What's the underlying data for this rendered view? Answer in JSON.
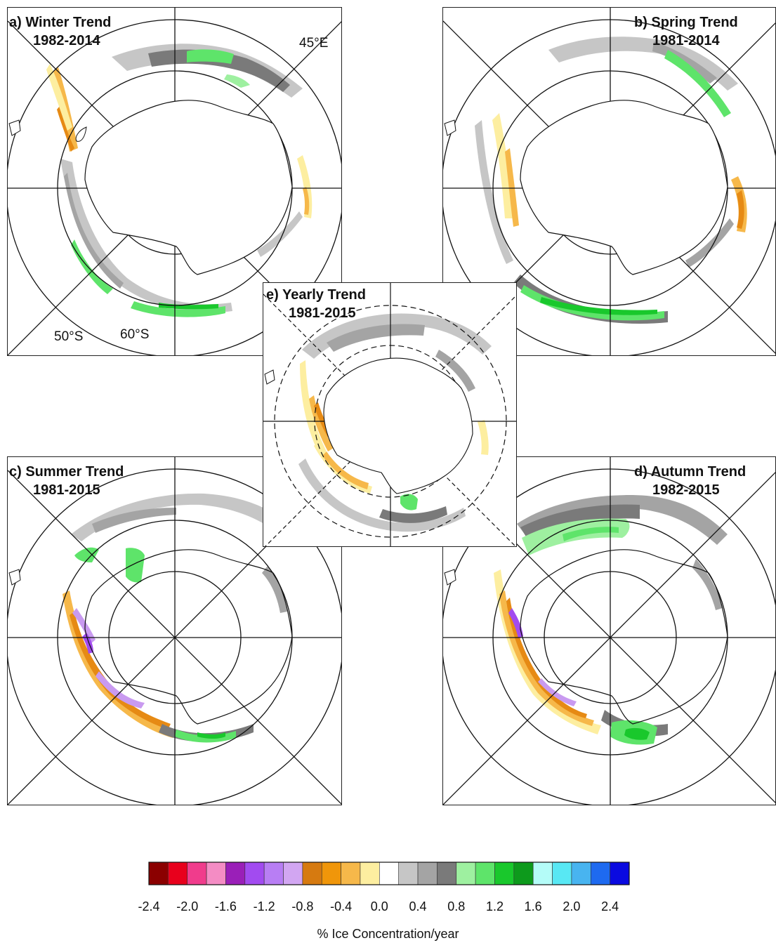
{
  "panels": {
    "a": {
      "title": "a) Winter Trend",
      "years": "1982-2014"
    },
    "b": {
      "title": "b) Spring Trend",
      "years": "1981-2014"
    },
    "c": {
      "title": "c) Summer Trend",
      "years": "1981-2015"
    },
    "d": {
      "title": "d) Autumn Trend",
      "years": "1982-2015"
    },
    "e": {
      "title": "e) Yearly Trend",
      "years": "1981-2015"
    }
  },
  "map_labels": {
    "lon_45e": "45°E",
    "lat_50s": "50°S",
    "lat_60s": "60°S"
  },
  "colorbar": {
    "title": "% Ice Concentration/year",
    "tick_labels": [
      "-2.4",
      "-2.0",
      "-1.6",
      "-1.2",
      "-0.8",
      "-0.4",
      "0.0",
      "0.4",
      "0.8",
      "1.2",
      "1.6",
      "2.0",
      "2.4"
    ],
    "colors": [
      "#8b0000",
      "#e8001c",
      "#f03c8c",
      "#f48cc4",
      "#9a1fb8",
      "#a24bf0",
      "#b87ef4",
      "#d2a6f2",
      "#d67a10",
      "#f0960a",
      "#f6b84a",
      "#fdeea0",
      "#ffffff",
      "#c6c6c6",
      "#a4a4a4",
      "#7a7a7a",
      "#9ef0a0",
      "#5ee46a",
      "#19c82c",
      "#0d9a1c",
      "#b4fcf8",
      "#58e8f4",
      "#48b4f0",
      "#1e6af0",
      "#0a0ae0"
    ]
  },
  "styles": {
    "grey_light": "#c6c6c6",
    "grey_mid": "#a4a4a4",
    "grey_dark": "#7a7a7a",
    "green_light": "#9ef0a0",
    "green_mid": "#5ee46a",
    "green_dark": "#19c82c",
    "yellow": "#fdeea0",
    "orange_light": "#f6b84a",
    "orange": "#e68a14",
    "purple_light": "#c99af0",
    "purple": "#a24bf0"
  }
}
